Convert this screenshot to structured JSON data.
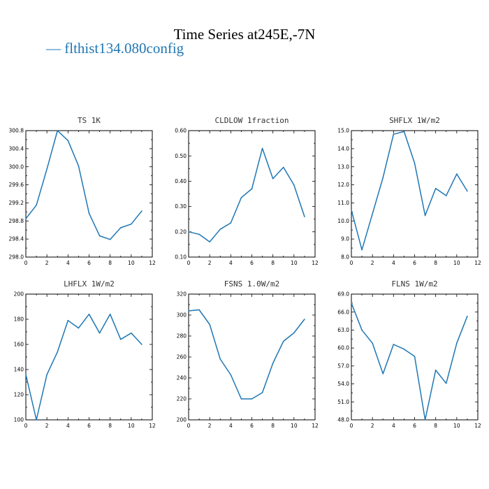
{
  "page": {
    "title": "Time Series at245E,-7N",
    "legend": "— flthist134.080config",
    "series_color": "#1f77b4"
  },
  "chart_data": [
    {
      "type": "line",
      "title": "TS   1K",
      "x": [
        0,
        1,
        2,
        3,
        4,
        5,
        6,
        7,
        8,
        9,
        10,
        11
      ],
      "values": [
        298.85,
        299.15,
        299.95,
        300.8,
        300.58,
        300.02,
        298.97,
        298.47,
        298.39,
        298.65,
        298.73,
        299.02
      ],
      "xlim": [
        0,
        12
      ],
      "ylim": [
        298.0,
        300.8
      ],
      "xticks": [
        "0",
        "2",
        "4",
        "6",
        "8",
        "10",
        "12"
      ],
      "yticks": [
        "298.0",
        "298.4",
        "298.8",
        "299.2",
        "299.6",
        "300.0",
        "300.4",
        "300.8"
      ]
    },
    {
      "type": "line",
      "title": "CLDLOW   1fraction",
      "x": [
        0,
        1,
        2,
        3,
        4,
        5,
        6,
        7,
        8,
        9,
        10,
        11
      ],
      "values": [
        0.2,
        0.19,
        0.16,
        0.21,
        0.235,
        0.335,
        0.37,
        0.53,
        0.41,
        0.455,
        0.385,
        0.26
      ],
      "xlim": [
        0,
        12
      ],
      "ylim": [
        0.1,
        0.6
      ],
      "xticks": [
        "0",
        "2",
        "4",
        "6",
        "8",
        "10",
        "12"
      ],
      "yticks": [
        "0.10",
        "0.20",
        "0.30",
        "0.40",
        "0.50",
        "0.60"
      ]
    },
    {
      "type": "line",
      "title": "SHFLX   1W/m2",
      "x": [
        0,
        1,
        2,
        3,
        4,
        5,
        6,
        7,
        8,
        9,
        10,
        11
      ],
      "values": [
        10.6,
        8.4,
        10.4,
        12.4,
        14.8,
        14.95,
        13.2,
        10.3,
        11.8,
        11.4,
        12.6,
        11.65
      ],
      "xlim": [
        0,
        12
      ],
      "ylim": [
        8.0,
        15.0
      ],
      "xticks": [
        "0",
        "2",
        "4",
        "6",
        "8",
        "10",
        "12"
      ],
      "yticks": [
        "8.0",
        "9.0",
        "10.0",
        "11.0",
        "12.0",
        "13.0",
        "14.0",
        "15.0"
      ]
    },
    {
      "type": "line",
      "title": "LHFLX   1W/m2",
      "x": [
        0,
        1,
        2,
        3,
        4,
        5,
        6,
        7,
        8,
        9,
        10,
        11
      ],
      "values": [
        136,
        100,
        136,
        154,
        179,
        173,
        184,
        169,
        184,
        164,
        169,
        160
      ],
      "xlim": [
        0,
        12
      ],
      "ylim": [
        100,
        200
      ],
      "xticks": [
        "0",
        "2",
        "4",
        "6",
        "8",
        "10",
        "12"
      ],
      "yticks": [
        "100",
        "120",
        "140",
        "160",
        "180",
        "200"
      ]
    },
    {
      "type": "line",
      "title": "FSNS   1.0W/m2",
      "x": [
        0,
        1,
        2,
        3,
        4,
        5,
        6,
        7,
        8,
        9,
        10,
        11
      ],
      "values": [
        304,
        305,
        291,
        258,
        243,
        220,
        220,
        226,
        254,
        275,
        283,
        296
      ],
      "xlim": [
        0,
        12
      ],
      "ylim": [
        200,
        320
      ],
      "xticks": [
        "0",
        "2",
        "4",
        "6",
        "8",
        "10",
        "12"
      ],
      "yticks": [
        "200",
        "220",
        "240",
        "260",
        "280",
        "300",
        "320"
      ]
    },
    {
      "type": "line",
      "title": "FLNS   1W/m2",
      "x": [
        0,
        1,
        2,
        3,
        4,
        5,
        6,
        7,
        8,
        9,
        10,
        11
      ],
      "values": [
        67.5,
        63.0,
        60.8,
        55.7,
        60.6,
        59.8,
        58.6,
        48.0,
        56.3,
        54.1,
        60.8,
        65.3
      ],
      "xlim": [
        0,
        12
      ],
      "ylim": [
        48.0,
        69.0
      ],
      "xticks": [
        "0",
        "2",
        "4",
        "6",
        "8",
        "10",
        "12"
      ],
      "yticks": [
        "48.0",
        "51.0",
        "54.0",
        "57.0",
        "60.0",
        "63.0",
        "66.0",
        "69.0"
      ]
    }
  ]
}
